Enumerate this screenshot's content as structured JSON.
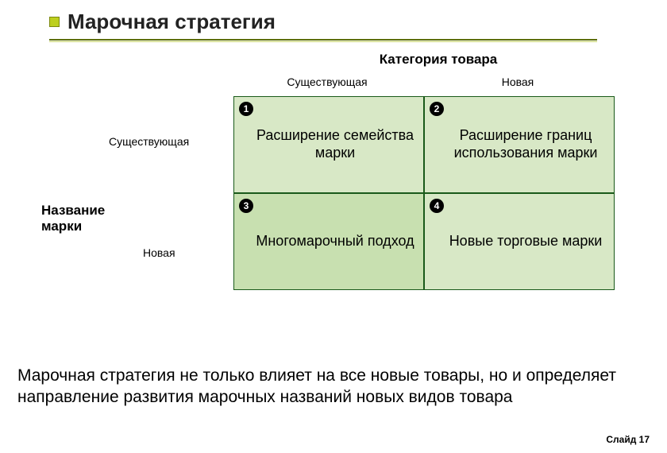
{
  "title": "Марочная стратегия",
  "axis_top": "Категория товара",
  "axis_side": "Название марки",
  "col_existing": "Существующая",
  "col_new": "Новая",
  "row_existing": "Существующая",
  "row_new": "Новая",
  "cells": {
    "c1": {
      "num": "1",
      "text": "Расширение семейства марки"
    },
    "c2": {
      "num": "2",
      "text": "Расширение границ использования марки"
    },
    "c3": {
      "num": "3",
      "text": "Многомарочный подход"
    },
    "c4": {
      "num": "4",
      "text": "Новые торговые марки"
    }
  },
  "bottom": "Марочная стратегия не только влияет на все новые товары, но и определяет направление развития марочных названий новых видов товара",
  "footer": "Слайд 17",
  "colors": {
    "cell_bg": "#d8e8c6",
    "cell_bg_alt": "#c8e0b0",
    "cell_border": "#1a5a1a",
    "bullet": "#bdcf1e",
    "divider": "#5d6e00"
  }
}
